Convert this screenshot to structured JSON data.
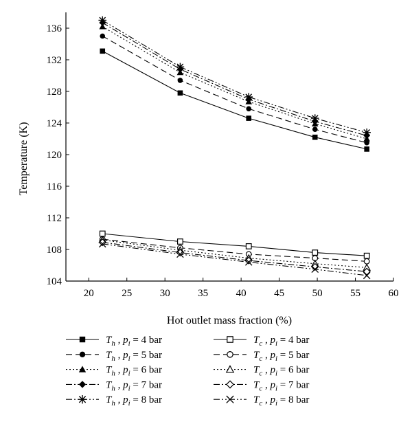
{
  "chart_data": {
    "type": "line",
    "xlabel": "Hot outlet mass fraction (%)",
    "ylabel": "Temperature (K)",
    "xlim": [
      17,
      60
    ],
    "ylim": [
      104,
      138
    ],
    "xticks": [
      20,
      25,
      30,
      35,
      40,
      45,
      50,
      55,
      60
    ],
    "yticks": [
      104,
      108,
      112,
      116,
      120,
      124,
      128,
      132,
      136
    ],
    "x": [
      21.8,
      32.0,
      41.0,
      49.7,
      56.5
    ],
    "grid": false,
    "legend_position": "bottom",
    "series": [
      {
        "name": "Th, pi = 4 bar",
        "legend": {
          "sym": "T",
          "sub": "h",
          "pre": "p",
          "psub": "i",
          "val": "= 4 bar"
        },
        "marker": "filled-square",
        "dash": "solid",
        "values": [
          133.1,
          127.8,
          124.6,
          122.2,
          120.7
        ]
      },
      {
        "name": "Th, pi = 5 bar",
        "legend": {
          "sym": "T",
          "sub": "h",
          "pre": "p",
          "psub": "i",
          "val": "= 5 bar"
        },
        "marker": "filled-circle",
        "dash": "dashed",
        "values": [
          135.0,
          129.4,
          125.8,
          123.2,
          121.5
        ]
      },
      {
        "name": "Th, pi = 6 bar",
        "legend": {
          "sym": "T",
          "sub": "h",
          "pre": "p",
          "psub": "i",
          "val": "= 6 bar"
        },
        "marker": "filled-triangle",
        "dash": "dotted",
        "values": [
          136.2,
          130.4,
          126.7,
          123.9,
          122.0
        ]
      },
      {
        "name": "Th, pi = 7 bar",
        "legend": {
          "sym": "T",
          "sub": "h",
          "pre": "p",
          "psub": "i",
          "val": "= 7 bar"
        },
        "marker": "filled-diamond",
        "dash": "dashdot",
        "values": [
          136.7,
          130.8,
          127.0,
          124.2,
          122.4
        ]
      },
      {
        "name": "Th, pi = 8 bar",
        "legend": {
          "sym": "T",
          "sub": "h",
          "pre": "p",
          "psub": "i",
          "val": "= 8 bar"
        },
        "marker": "asterisk",
        "dash": "dashdotdot",
        "values": [
          137.0,
          131.1,
          127.3,
          124.6,
          122.8
        ]
      },
      {
        "name": "Tc, pi = 4 bar",
        "legend": {
          "sym": "T",
          "sub": "c",
          "pre": "p",
          "psub": "i",
          "val": "= 4 bar"
        },
        "marker": "open-square",
        "dash": "solid",
        "values": [
          110.0,
          109.0,
          108.4,
          107.6,
          107.2
        ]
      },
      {
        "name": "Tc, pi = 5 bar",
        "legend": {
          "sym": "T",
          "sub": "c",
          "pre": "p",
          "psub": "i",
          "val": "= 5 bar"
        },
        "marker": "open-circle",
        "dash": "dashed",
        "values": [
          109.3,
          108.2,
          107.4,
          106.9,
          106.5
        ]
      },
      {
        "name": "Tc, pi = 6 bar",
        "legend": {
          "sym": "T",
          "sub": "c",
          "pre": "p",
          "psub": "i",
          "val": "= 6 bar"
        },
        "marker": "open-triangle",
        "dash": "dotted",
        "values": [
          109.2,
          107.9,
          106.9,
          106.2,
          105.7
        ]
      },
      {
        "name": "Tc, pi = 7 bar",
        "legend": {
          "sym": "T",
          "sub": "c",
          "pre": "p",
          "psub": "i",
          "val": "= 7 bar"
        },
        "marker": "open-diamond",
        "dash": "dashdot",
        "values": [
          108.9,
          107.6,
          106.6,
          105.8,
          105.2
        ]
      },
      {
        "name": "Tc, pi = 8 bar",
        "legend": {
          "sym": "T",
          "sub": "c",
          "pre": "p",
          "psub": "i",
          "val": "= 8 bar"
        },
        "marker": "cross",
        "dash": "dashdotdot",
        "values": [
          108.7,
          107.4,
          106.4,
          105.5,
          104.7
        ]
      }
    ],
    "colors": {
      "line": "#000000",
      "background": "#ffffff"
    }
  }
}
